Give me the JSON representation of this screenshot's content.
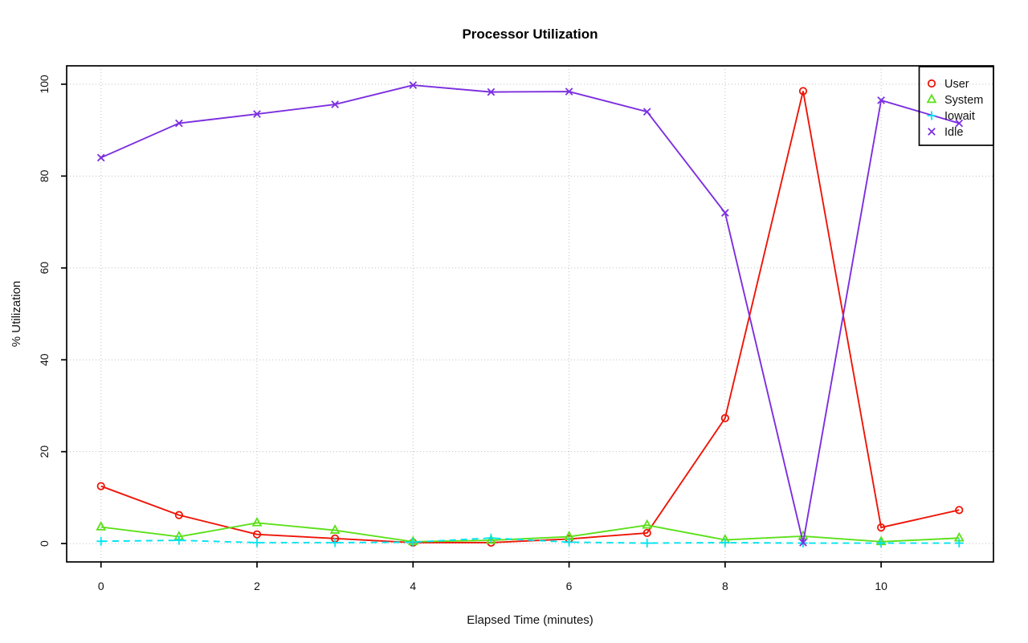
{
  "window": {
    "background": "#ffffff"
  },
  "chart_data": {
    "type": "line",
    "title": "Processor Utilization",
    "xlabel": "Elapsed Time (minutes)",
    "ylabel": "% Utilization",
    "x": [
      0,
      1,
      2,
      3,
      4,
      5,
      6,
      7,
      8,
      9,
      10,
      11
    ],
    "x_ticks": [
      0,
      2,
      4,
      6,
      8,
      10
    ],
    "y_ticks": [
      0,
      20,
      40,
      60,
      80,
      100
    ],
    "xlim": [
      -0.44,
      11.44
    ],
    "ylim": [
      -4,
      104
    ],
    "grid": true,
    "grid_style": "dotted",
    "legend_position": "topright",
    "legend_transparent": true,
    "series": [
      {
        "name": "User",
        "color": "#ee1507",
        "marker": "circle",
        "line": "solid",
        "values": [
          12.5,
          6.2,
          2.0,
          1.1,
          0.2,
          0.2,
          1.0,
          2.3,
          27.3,
          98.5,
          3.5,
          7.3
        ]
      },
      {
        "name": "System",
        "color": "#5ce019",
        "marker": "triangle",
        "line": "solid",
        "values": [
          3.6,
          1.5,
          4.5,
          2.9,
          0.4,
          0.7,
          1.5,
          4.0,
          0.8,
          1.6,
          0.4,
          1.2
        ]
      },
      {
        "name": "Iowait",
        "color": "#00e4f0",
        "marker": "plus",
        "line": "dashed",
        "values": [
          0.5,
          0.7,
          0.2,
          0.2,
          0.3,
          1.2,
          0.3,
          0.1,
          0.2,
          0.1,
          0.1,
          0.1
        ]
      },
      {
        "name": "Idle",
        "color": "#7c2fdf",
        "marker": "x",
        "line": "solid",
        "values": [
          84.0,
          91.5,
          93.5,
          95.6,
          99.8,
          98.3,
          98.4,
          94.0,
          72.0,
          0.2,
          96.5,
          91.5
        ]
      }
    ],
    "colors": {
      "grid": "#bfbfbf",
      "axis": "#000000",
      "background": "#ffffff"
    }
  }
}
